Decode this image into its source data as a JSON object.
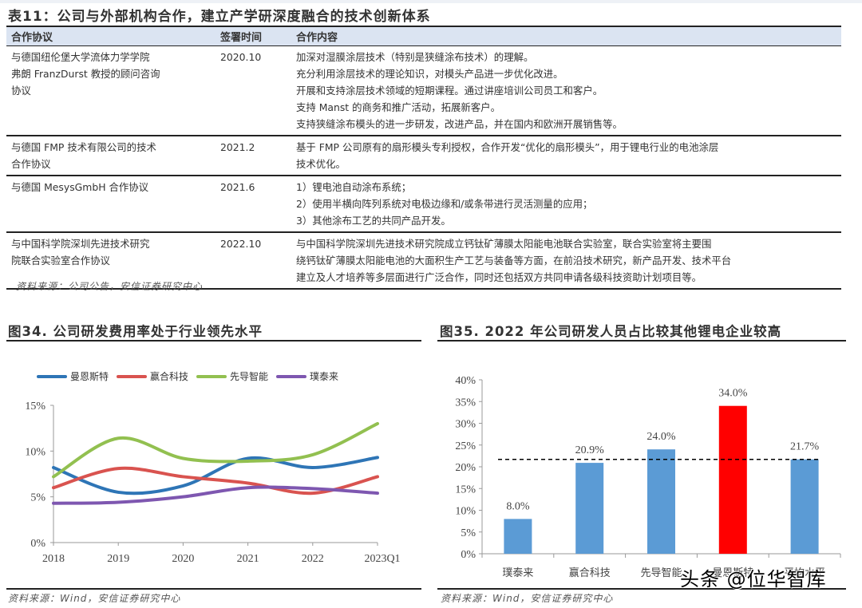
{
  "table": {
    "title": "表11：公司与外部机构合作，建立产学研深度融合的技术创新体系",
    "headers": [
      "合作协议",
      "签署时间",
      "合作内容"
    ],
    "rows": [
      {
        "agreement": [
          "与德国纽伦堡大学流体力学学院",
          "弗朗 FranzDurst 教授的顾问咨询",
          "协议"
        ],
        "date": "2020.10",
        "content": [
          "加深对湿膜涂层技术（特别是狭缝涂布技术）的理解。",
          "充分利用涂层技术的理论知识，对模头产品进一步优化改进。",
          "开展和支持涂层技术领域的短期课程。通过讲座培训公司员工和客户。",
          "支持 Manst 的商务和推广活动，拓展新客户。",
          "支持狭缝涂布模头的进一步研发，改进产品，并在国内和欧洲开展销售等。"
        ]
      },
      {
        "agreement": [
          "与德国 FMP 技术有限公司的技术",
          "合作协议"
        ],
        "date": "2021.2",
        "content": [
          "基于 FMP 公司原有的扇形模头专利授权，合作开发“优化的扇形模头”，用于锂电行业的电池涂层",
          "技术优化。"
        ]
      },
      {
        "agreement": [
          "与德国 MesysGmbH 合作协议"
        ],
        "date": "2021.6",
        "content": [
          "1）锂电池自动涂布系统；",
          "2）使用半横向阵列系统对电极边缘和/或条带进行灵活测量的应用；",
          "3）其他涂布工艺的共同产品开发。"
        ]
      },
      {
        "agreement": [
          "与中国科学院深圳先进技术研究",
          "院联合实验室合作协议"
        ],
        "date": "2022.10",
        "content": [
          "与中国科学院深圳先进技术研究院成立钙钛矿薄膜太阳能电池联合实验室，联合实验室将主要围",
          "绕钙钛矿薄膜太阳能电池的大面积生产工艺与装备等方面，在前沿技术研究，新产品开发、技术平台",
          "建立及人才培养等多层面进行广泛合作，同时还包括双方共同申请各级科技资助计划项目等。"
        ]
      }
    ],
    "source": "资料来源：公司公告，安信证券研究中心"
  },
  "figure34": {
    "title": "图34. 公司研发费用率处于行业领先水平",
    "source": "资料来源：Wind，安信证券研究中心"
  },
  "figure35": {
    "title": "图35. 2022 年公司研发人员占比较其他锂电企业较高",
    "source": "资料来源：Wind，安信证券研究中心"
  },
  "watermark": "头条 @位华智库",
  "chart_data": [
    {
      "type": "line",
      "title": "图34. 公司研发费用率处于行业领先水平",
      "xlabel": "",
      "ylabel": "",
      "x": [
        "2018",
        "2019",
        "2020",
        "2021",
        "2022",
        "2023Q1"
      ],
      "yticks": [
        "0%",
        "5%",
        "10%",
        "15%"
      ],
      "ylim": [
        0,
        15
      ],
      "grid": false,
      "legend_position": "top",
      "smooth": true,
      "series": [
        {
          "name": "曼恩斯特",
          "color": "#2e75b6",
          "values": [
            8.2,
            5.5,
            6.2,
            9.2,
            8.2,
            9.3
          ]
        },
        {
          "name": "赢合科技",
          "color": "#d9534f",
          "values": [
            6.0,
            8.1,
            7.2,
            6.5,
            5.4,
            7.2
          ]
        },
        {
          "name": "先导智能",
          "color": "#92c050",
          "values": [
            7.2,
            11.4,
            9.2,
            8.9,
            9.6,
            13.0
          ]
        },
        {
          "name": "璞泰来",
          "color": "#7e57b0",
          "values": [
            4.3,
            4.4,
            5.0,
            6.0,
            5.9,
            5.4
          ]
        }
      ]
    },
    {
      "type": "bar",
      "title": "图35. 2022 年公司研发人员占比较其他锂电企业较高",
      "xlabel": "",
      "ylabel": "",
      "categories": [
        "璞泰来",
        "赢合科技",
        "先导智能",
        "曼恩斯特",
        "平均水平"
      ],
      "values": [
        8.0,
        20.9,
        24.0,
        34.0,
        21.7
      ],
      "labels": [
        "8.0%",
        "20.9%",
        "24.0%",
        "34.0%",
        "21.7%"
      ],
      "colors": [
        "#5b9bd5",
        "#5b9bd5",
        "#5b9bd5",
        "#ff0000",
        "#5b9bd5"
      ],
      "yticks": [
        "0%",
        "5%",
        "10%",
        "15%",
        "20%",
        "25%",
        "30%",
        "35%",
        "40%"
      ],
      "ylim": [
        0,
        40
      ],
      "reference_line": {
        "value": 21.7,
        "style": "dashed",
        "color": "#000000"
      },
      "grid": false
    }
  ]
}
